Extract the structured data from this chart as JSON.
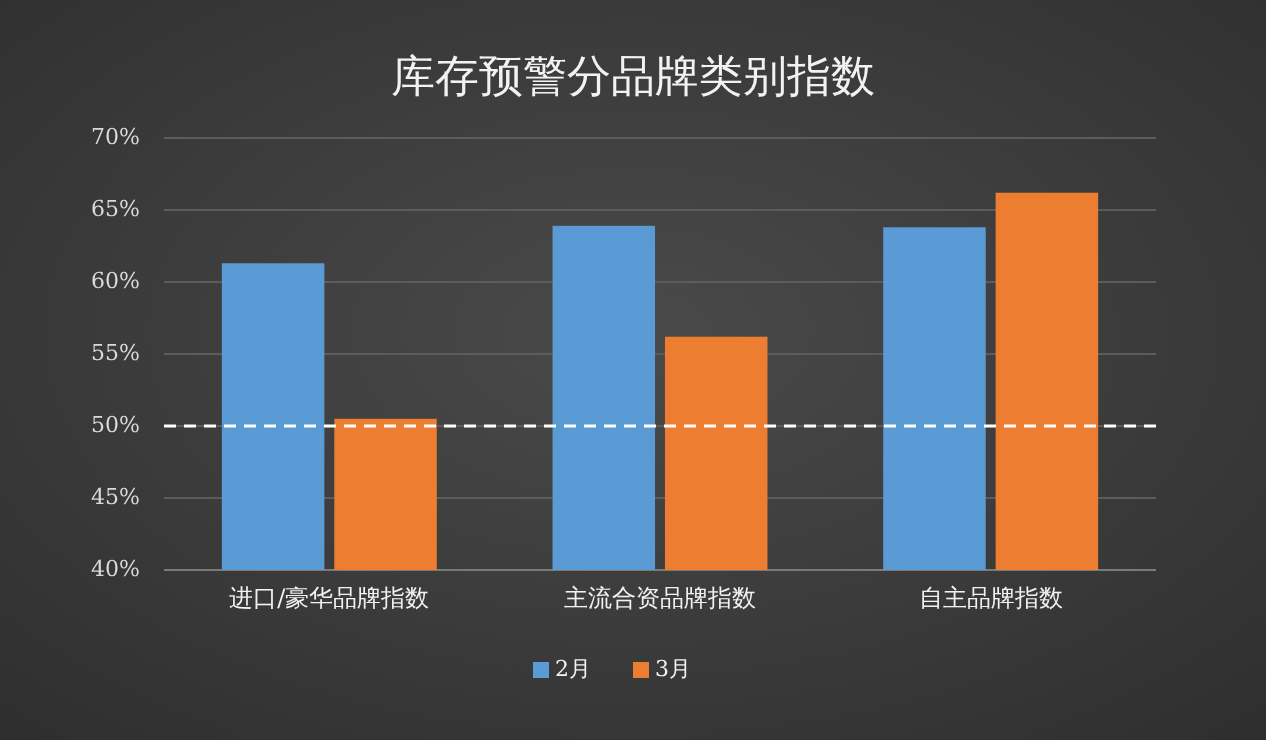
{
  "chart_data": {
    "type": "bar",
    "title": "库存预警分品牌类别指数",
    "categories": [
      "进口/豪华品牌指数",
      "主流合资品牌指数",
      "自主品牌指数"
    ],
    "series": [
      {
        "name": "2月",
        "color": "#5b9bd5",
        "values": [
          61.3,
          63.9,
          63.8
        ]
      },
      {
        "name": "3月",
        "color": "#ed7d31",
        "values": [
          50.5,
          56.2,
          66.2
        ]
      }
    ],
    "ylim": [
      40,
      70
    ],
    "yticks": [
      {
        "value": 40,
        "label": "40%"
      },
      {
        "value": 45,
        "label": "45%"
      },
      {
        "value": 50,
        "label": "50%"
      },
      {
        "value": 55,
        "label": "55%"
      },
      {
        "value": 60,
        "label": "60%"
      },
      {
        "value": 65,
        "label": "65%"
      },
      {
        "value": 70,
        "label": "70%"
      }
    ],
    "ref_lines": [
      {
        "axis": "y",
        "value": 50,
        "color": "#ffffff",
        "line_style": "dashed"
      }
    ],
    "grid": "y",
    "legend": "bottom"
  }
}
